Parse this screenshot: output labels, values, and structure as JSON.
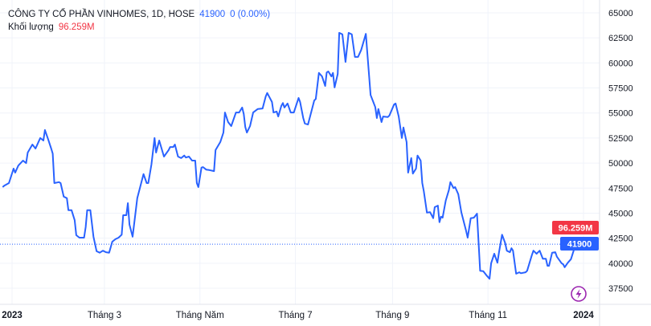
{
  "legend": {
    "title": "CÔNG TY CỔ PHẦN VINHOMES, 1D, HOSE",
    "last_price": "41900",
    "change": "0 (0.00%)",
    "volume_label": "Khối lượng",
    "volume_value": "96.259M"
  },
  "badges": {
    "volume": "96.259M",
    "price": "41900"
  },
  "colors": {
    "line": "#2962ff",
    "price_badge": "#2962ff",
    "volume_badge": "#f23645",
    "grid": "#f0f3fa",
    "lightning_icon": "#9c27b0"
  },
  "icons": {
    "bottom_right": "lightning-icon"
  },
  "chart_data": {
    "type": "line",
    "title": "CÔNG TY CỔ PHẦN VINHOMES, 1D, HOSE",
    "xlabel": "",
    "ylabel": "",
    "ylim": [
      36800,
      65500
    ],
    "grid": true,
    "y_ticks": [
      "37500",
      "40000",
      "42500",
      "45000",
      "47500",
      "50000",
      "52500",
      "55000",
      "57500",
      "60000",
      "62500",
      "65000"
    ],
    "x_ticks": [
      {
        "label": "2023",
        "date": "2023-01-01"
      },
      {
        "label": "Tháng 3",
        "date": "2023-03-01"
      },
      {
        "label": "Tháng Năm",
        "date": "2023-05-01"
      },
      {
        "label": "Tháng 7",
        "date": "2023-07-01"
      },
      {
        "label": "Tháng 9",
        "date": "2023-09-01"
      },
      {
        "label": "Tháng 11",
        "date": "2023-11-01"
      },
      {
        "label": "2024",
        "date": "2024-01-01"
      }
    ],
    "last_value": 41900,
    "series": [
      {
        "x": [
          "2022-12-26",
          "2022-12-27",
          "2022-12-30",
          "2023-01-02",
          "2023-01-03",
          "2023-01-05",
          "2023-01-08",
          "2023-01-10",
          "2023-01-11",
          "2023-01-14",
          "2023-01-16",
          "2023-01-18",
          "2023-01-19",
          "2023-01-21",
          "2023-01-22",
          "2023-01-24",
          "2023-01-26",
          "2023-01-27",
          "2023-01-28",
          "2023-01-31",
          "2023-02-01",
          "2023-02-03",
          "2023-02-05",
          "2023-02-06",
          "2023-02-08",
          "2023-02-10",
          "2023-02-11",
          "2023-02-13",
          "2023-02-16",
          "2023-02-17",
          "2023-02-18",
          "2023-02-20",
          "2023-02-22",
          "2023-02-24",
          "2023-02-26",
          "2023-02-28",
          "2023-03-02",
          "2023-03-04",
          "2023-03-06",
          "2023-03-08",
          "2023-03-10",
          "2023-03-12",
          "2023-03-13",
          "2023-03-15",
          "2023-03-16",
          "2023-03-17",
          "2023-03-19",
          "2023-03-22",
          "2023-03-24",
          "2023-03-26",
          "2023-03-28",
          "2023-03-29",
          "2023-03-31",
          "2023-04-02",
          "2023-04-03",
          "2023-04-05",
          "2023-04-08",
          "2023-04-11",
          "2023-04-12",
          "2023-04-14",
          "2023-04-15",
          "2023-04-17",
          "2023-04-19",
          "2023-04-21",
          "2023-04-22",
          "2023-04-24",
          "2023-04-26",
          "2023-04-28",
          "2023-04-29",
          "2023-04-30",
          "2023-05-02",
          "2023-05-03",
          "2023-05-05",
          "2023-05-07",
          "2023-05-10",
          "2023-05-11",
          "2023-05-14",
          "2023-05-16",
          "2023-05-17",
          "2023-05-19",
          "2023-05-21",
          "2023-05-24",
          "2023-05-26",
          "2023-05-28",
          "2023-05-29",
          "2023-05-30",
          "2023-05-31",
          "2023-06-02",
          "2023-06-04",
          "2023-06-07",
          "2023-06-10",
          "2023-06-12",
          "2023-06-13",
          "2023-06-16",
          "2023-06-17",
          "2023-06-19",
          "2023-06-20",
          "2023-06-22",
          "2023-06-23",
          "2023-06-24",
          "2023-06-26",
          "2023-06-28",
          "2023-06-30",
          "2023-07-03",
          "2023-07-04",
          "2023-07-06",
          "2023-07-07",
          "2023-07-09",
          "2023-07-11",
          "2023-07-13",
          "2023-07-14",
          "2023-07-16",
          "2023-07-18",
          "2023-07-20",
          "2023-07-21",
          "2023-07-22",
          "2023-07-24",
          "2023-07-25",
          "2023-07-26",
          "2023-07-28",
          "2023-07-29",
          "2023-07-31",
          "2023-08-02",
          "2023-08-04",
          "2023-08-06",
          "2023-08-08",
          "2023-08-10",
          "2023-08-12",
          "2023-08-15",
          "2023-08-18",
          "2023-08-21",
          "2023-08-22",
          "2023-08-23",
          "2023-08-25",
          "2023-08-26",
          "2023-08-29",
          "2023-08-30",
          "2023-09-02",
          "2023-09-03",
          "2023-09-05",
          "2023-09-07",
          "2023-09-08",
          "2023-09-10",
          "2023-09-11",
          "2023-09-13",
          "2023-09-14",
          "2023-09-16",
          "2023-09-17",
          "2023-09-19",
          "2023-09-20",
          "2023-09-21",
          "2023-09-23",
          "2023-09-25",
          "2023-09-27",
          "2023-09-28",
          "2023-09-30",
          "2023-10-01",
          "2023-10-02",
          "2023-10-03",
          "2023-10-05",
          "2023-10-07",
          "2023-10-08",
          "2023-10-10",
          "2023-10-11",
          "2023-10-13",
          "2023-10-15",
          "2023-10-18",
          "2023-10-19",
          "2023-10-21",
          "2023-10-23",
          "2023-10-25",
          "2023-10-27",
          "2023-10-29",
          "2023-10-31",
          "2023-11-02",
          "2023-11-03",
          "2023-11-05",
          "2023-11-07",
          "2023-11-08",
          "2023-11-10",
          "2023-11-12",
          "2023-11-13",
          "2023-11-15",
          "2023-11-16",
          "2023-11-17",
          "2023-11-19",
          "2023-11-21",
          "2023-11-22",
          "2023-11-25",
          "2023-11-26",
          "2023-11-29",
          "2023-11-30",
          "2023-12-02",
          "2023-12-04",
          "2023-12-06",
          "2023-12-08",
          "2023-12-09",
          "2023-12-10",
          "2023-12-12",
          "2023-12-14",
          "2023-12-15",
          "2023-12-18",
          "2023-12-19",
          "2023-12-20",
          "2023-12-22",
          "2023-12-24",
          "2023-12-27",
          "2023-12-29"
        ],
        "y": [
          47600,
          47750,
          48000,
          49450,
          49050,
          49750,
          50250,
          50000,
          51050,
          51850,
          51450,
          52150,
          52500,
          52250,
          53300,
          52400,
          51450,
          50950,
          48000,
          48100,
          48000,
          46650,
          46500,
          45300,
          45300,
          44300,
          42800,
          42550,
          42550,
          43600,
          45300,
          45300,
          42650,
          41200,
          41050,
          41250,
          41100,
          41050,
          42150,
          42400,
          42550,
          42850,
          44800,
          44800,
          46000,
          43850,
          42650,
          46500,
          47700,
          48900,
          48000,
          48000,
          49850,
          52500,
          51050,
          52250,
          50650,
          51300,
          51600,
          51600,
          51850,
          50650,
          50500,
          50750,
          50550,
          50650,
          50250,
          50250,
          48000,
          47600,
          49550,
          49600,
          49350,
          49300,
          49200,
          51300,
          52100,
          53050,
          55050,
          54100,
          53700,
          55050,
          55050,
          55550,
          54900,
          53600,
          53050,
          53700,
          55050,
          55400,
          55450,
          56650,
          57000,
          56100,
          55050,
          55150,
          54650,
          55700,
          56000,
          55550,
          55950,
          55050,
          55050,
          56500,
          56100,
          54500,
          53950,
          53850,
          55050,
          56250,
          56400,
          59000,
          58650,
          57700,
          59050,
          59150,
          58650,
          59000,
          57550,
          58900,
          63000,
          62850,
          60100,
          63000,
          62850,
          60600,
          60600,
          61300,
          62900,
          56800,
          55600,
          54500,
          55400,
          54100,
          54650,
          54600,
          54750,
          55850,
          55950,
          54650,
          52500,
          53550,
          52100,
          49050,
          50500,
          48950,
          49450,
          50750,
          50250,
          48000,
          47200,
          45050,
          45100,
          44500,
          45600,
          45750,
          44100,
          44650,
          44550,
          46250,
          47300,
          48100,
          47500,
          47600,
          46900,
          45050,
          43250,
          42550,
          44500,
          44550,
          44950,
          39250,
          39200,
          38800,
          38450,
          40000,
          40950,
          40050,
          41050,
          42850,
          42000,
          41250,
          41100,
          41500,
          41250,
          38950,
          39100,
          39000,
          39100,
          39250,
          40800,
          41250,
          40950,
          41250,
          40450,
          40450,
          39750,
          39750,
          41050,
          41100,
          40650,
          40000,
          39900,
          39600,
          40050,
          40400,
          41900,
          41900
        ]
      }
    ]
  }
}
